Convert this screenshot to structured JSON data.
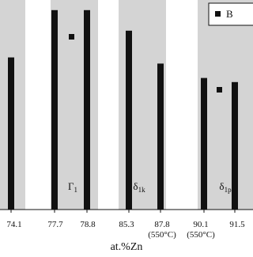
{
  "chart_data": {
    "type": "bar",
    "categories": [
      "74.1",
      "77.7",
      "78.8",
      "85.3",
      "87.8",
      "90.1",
      "91.5"
    ],
    "category_notes": [
      null,
      null,
      null,
      null,
      "(550°C)",
      "(550°C)",
      null
    ],
    "values": [
      74,
      97,
      97,
      87,
      71,
      64,
      62
    ],
    "color": "#111111",
    "ylim": [
      0,
      100
    ],
    "xlabel": "at.%Zn",
    "legend": {
      "label": "B",
      "corner": "top-right"
    },
    "phases": [
      {
        "symbol": "Γ",
        "sub": "1"
      },
      {
        "symbol": "δ",
        "sub": "1k"
      },
      {
        "symbol": "δ",
        "sub": "1p"
      }
    ]
  }
}
